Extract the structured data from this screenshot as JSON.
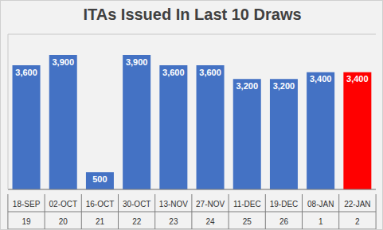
{
  "chart_data": {
    "type": "bar",
    "title": "ITAs Issued In Last 10 Draws",
    "categories": [
      "18-SEP",
      "02-OCT",
      "16-OCT",
      "30-OCT",
      "13-NOV",
      "27-NOV",
      "11-DEC",
      "19-DEC",
      "08-JAN",
      "22-JAN"
    ],
    "draw_numbers": [
      19,
      20,
      21,
      22,
      23,
      24,
      25,
      26,
      1,
      2
    ],
    "values": [
      3600,
      3900,
      500,
      3900,
      3600,
      3600,
      3200,
      3200,
      3400,
      3400
    ],
    "value_labels": [
      "3,600",
      "3,900",
      "500",
      "3,900",
      "3,600",
      "3,600",
      "3,200",
      "3,200",
      "3,400",
      "3,400"
    ],
    "colors": [
      "#4472c4",
      "#4472c4",
      "#4472c4",
      "#4472c4",
      "#4472c4",
      "#4472c4",
      "#4472c4",
      "#4472c4",
      "#4472c4",
      "#ff0000"
    ],
    "ylim": [
      0,
      4500
    ],
    "yticks": [
      0,
      500,
      1000,
      1500,
      2000,
      2500,
      3000,
      3500,
      4000,
      4500
    ],
    "grid": true,
    "data_labels": true,
    "tick_labels": "x"
  }
}
